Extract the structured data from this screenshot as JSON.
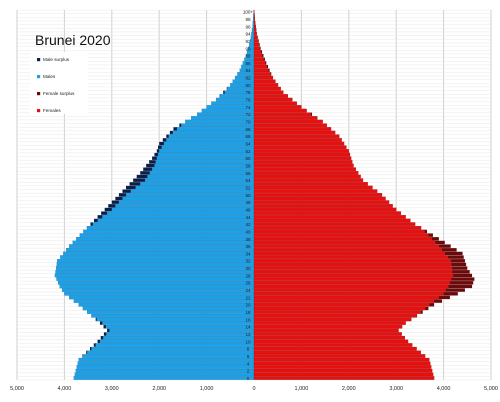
{
  "chart_data": {
    "type": "bar",
    "orientation": "horizontal",
    "title": "Brunei 2020",
    "legend": {
      "placement": "top-left",
      "entries": [
        {
          "label": "Male surplus",
          "color": "#0a1f4a"
        },
        {
          "label": "Males",
          "color": "#1ea0e6"
        },
        {
          "label": "Female surplus",
          "color": "#6a0a0a"
        },
        {
          "label": "Females",
          "color": "#e51010"
        }
      ]
    },
    "xlim": [
      -5000,
      5000
    ],
    "x_ticks": [
      {
        "value": -5000,
        "label": "5,000"
      },
      {
        "value": -4000,
        "label": "4,000"
      },
      {
        "value": -3000,
        "label": "3,000"
      },
      {
        "value": -2000,
        "label": "2,000"
      },
      {
        "value": -1000,
        "label": "1,000"
      },
      {
        "value": 0,
        "label": "0"
      },
      {
        "value": 1000,
        "label": "1,000"
      },
      {
        "value": 2000,
        "label": "2,000"
      },
      {
        "value": 3000,
        "label": "3,000"
      },
      {
        "value": 4000,
        "label": "4,000"
      },
      {
        "value": 5000,
        "label": "5,000"
      }
    ],
    "age_labels": [
      "0",
      "2",
      "4",
      "6",
      "8",
      "10",
      "12",
      "14",
      "16",
      "18",
      "20",
      "22",
      "24",
      "26",
      "28",
      "30",
      "32",
      "34",
      "36",
      "38",
      "40",
      "42",
      "44",
      "46",
      "48",
      "50",
      "52",
      "54",
      "56",
      "58",
      "60",
      "62",
      "64",
      "66",
      "68",
      "70",
      "72",
      "74",
      "76",
      "78",
      "80",
      "82",
      "84",
      "86",
      "88",
      "90",
      "92",
      "94",
      "96",
      "98",
      "100+"
    ],
    "grid": true,
    "male_key": [
      [
        0,
        3800
      ],
      [
        5,
        3700
      ],
      [
        10,
        3300
      ],
      [
        13,
        3100
      ],
      [
        15,
        3250
      ],
      [
        20,
        3700
      ],
      [
        23,
        4000
      ],
      [
        25,
        4100
      ],
      [
        28,
        4200
      ],
      [
        32,
        4150
      ],
      [
        36,
        3900
      ],
      [
        40,
        3600
      ],
      [
        44,
        3300
      ],
      [
        48,
        3000
      ],
      [
        52,
        2700
      ],
      [
        56,
        2400
      ],
      [
        60,
        2150
      ],
      [
        62,
        2050
      ],
      [
        64,
        2000
      ],
      [
        68,
        1700
      ],
      [
        72,
        1200
      ],
      [
        76,
        800
      ],
      [
        80,
        500
      ],
      [
        84,
        300
      ],
      [
        88,
        170
      ],
      [
        92,
        80
      ],
      [
        96,
        30
      ],
      [
        100,
        8
      ]
    ],
    "female_key": [
      [
        0,
        3800
      ],
      [
        5,
        3700
      ],
      [
        10,
        3250
      ],
      [
        13,
        3050
      ],
      [
        15,
        3200
      ],
      [
        20,
        3800
      ],
      [
        23,
        4300
      ],
      [
        25,
        4600
      ],
      [
        27,
        4650
      ],
      [
        30,
        4500
      ],
      [
        34,
        4400
      ],
      [
        38,
        3900
      ],
      [
        42,
        3400
      ],
      [
        46,
        3000
      ],
      [
        50,
        2700
      ],
      [
        54,
        2300
      ],
      [
        58,
        2100
      ],
      [
        62,
        2000
      ],
      [
        66,
        1800
      ],
      [
        70,
        1450
      ],
      [
        74,
        1000
      ],
      [
        78,
        620
      ],
      [
        82,
        400
      ],
      [
        86,
        260
      ],
      [
        90,
        140
      ],
      [
        94,
        60
      ],
      [
        98,
        20
      ],
      [
        100,
        8
      ]
    ]
  }
}
